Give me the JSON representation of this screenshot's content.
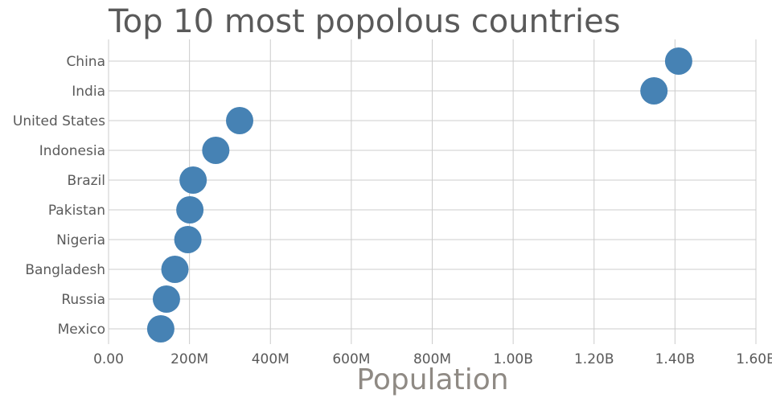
{
  "chart_data": {
    "type": "scatter",
    "title": "Top 10 most popolous countries",
    "xlabel": "Population",
    "ylabel": "",
    "xlim": [
      0,
      1600000000
    ],
    "x_ticks": [
      0,
      200000000,
      400000000,
      600000000,
      800000000,
      1000000000,
      1200000000,
      1400000000,
      1600000000
    ],
    "x_tick_labels": [
      "0.00",
      "200M",
      "400M",
      "600M",
      "800M",
      "1.00B",
      "1.20B",
      "1.40B",
      "1.60B"
    ],
    "categories": [
      "China",
      "India",
      "United States",
      "Indonesia",
      "Brazil",
      "Pakistan",
      "Nigeria",
      "Bangladesh",
      "Russia",
      "Mexico"
    ],
    "values": [
      1409000000,
      1348000000,
      324000000,
      265000000,
      209000000,
      201000000,
      196000000,
      164000000,
      143000000,
      129000000
    ],
    "grid": true,
    "colors": {
      "point": "#4682b4",
      "grid": "#cccccc",
      "text": "#5a5a5a",
      "xlabel": "#8f8a84"
    }
  }
}
